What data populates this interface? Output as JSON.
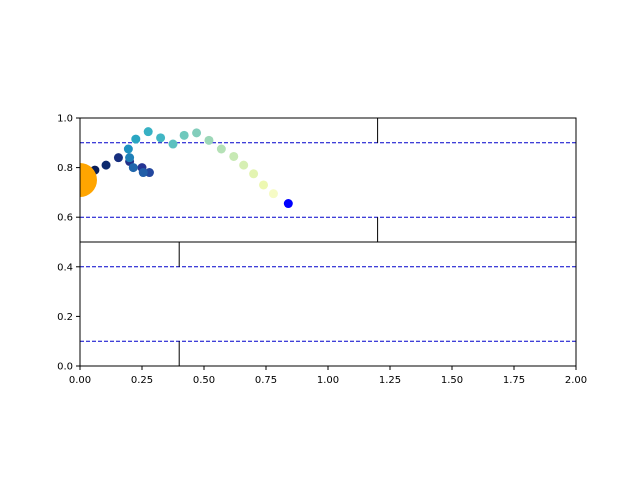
{
  "chart_data": {
    "type": "scatter",
    "xlim": [
      0,
      2
    ],
    "ylim": [
      0,
      1
    ],
    "x_ticks": [
      "0.00",
      "0.25",
      "0.50",
      "0.75",
      "1.00",
      "1.25",
      "1.50",
      "1.75",
      "2.00"
    ],
    "y_ticks": [
      "0.0",
      "0.2",
      "0.4",
      "0.6",
      "0.8",
      "1.0"
    ],
    "grid": false,
    "colors": {
      "dashed_lines": "#0000cc",
      "large_marker": "#ffa500",
      "final_point": "#0000ff",
      "frame": "#000000"
    },
    "partition_lines": {
      "horizontal": [
        {
          "y": 0.5,
          "x_from": 0,
          "x_to": 2
        }
      ],
      "vertical": [
        {
          "x": 1.2,
          "y_from": 0.9,
          "y_to": 1.0
        },
        {
          "x": 1.2,
          "y_from": 0.5,
          "y_to": 0.6
        },
        {
          "x": 0.4,
          "y_from": 0.4,
          "y_to": 0.5
        },
        {
          "x": 0.4,
          "y_from": 0.0,
          "y_to": 0.1
        }
      ]
    },
    "dashed_lines": [
      {
        "y": 0.9,
        "x_from": 0,
        "x_to": 2
      },
      {
        "y": 0.6,
        "x_from": 0,
        "x_to": 2
      },
      {
        "y": 0.4,
        "x_from": 0,
        "x_to": 2
      },
      {
        "y": 0.1,
        "x_from": 0,
        "x_to": 2
      }
    ],
    "large_marker": {
      "x": 0.0,
      "y": 0.75
    },
    "points": [
      {
        "x": 0.06,
        "y": 0.79,
        "color": "#081d58"
      },
      {
        "x": 0.105,
        "y": 0.81,
        "color": "#0c2a6e"
      },
      {
        "x": 0.155,
        "y": 0.84,
        "color": "#172f7f"
      },
      {
        "x": 0.2,
        "y": 0.825,
        "color": "#22328a"
      },
      {
        "x": 0.25,
        "y": 0.8,
        "color": "#253494"
      },
      {
        "x": 0.28,
        "y": 0.78,
        "color": "#23479e"
      },
      {
        "x": 0.255,
        "y": 0.78,
        "color": "#225ea8"
      },
      {
        "x": 0.215,
        "y": 0.8,
        "color": "#2166ac"
      },
      {
        "x": 0.2,
        "y": 0.84,
        "color": "#1f80b8"
      },
      {
        "x": 0.195,
        "y": 0.875,
        "color": "#1d91c0"
      },
      {
        "x": 0.225,
        "y": 0.915,
        "color": "#2aa6c2"
      },
      {
        "x": 0.275,
        "y": 0.945,
        "color": "#37b1c4"
      },
      {
        "x": 0.325,
        "y": 0.92,
        "color": "#41b6c4"
      },
      {
        "x": 0.375,
        "y": 0.895,
        "color": "#5cc0c0"
      },
      {
        "x": 0.42,
        "y": 0.93,
        "color": "#6fc9bd"
      },
      {
        "x": 0.47,
        "y": 0.94,
        "color": "#82cdbb"
      },
      {
        "x": 0.52,
        "y": 0.91,
        "color": "#9dd7b8"
      },
      {
        "x": 0.57,
        "y": 0.875,
        "color": "#b5e1b6"
      },
      {
        "x": 0.62,
        "y": 0.845,
        "color": "#c7e9b4"
      },
      {
        "x": 0.66,
        "y": 0.81,
        "color": "#d6efb3"
      },
      {
        "x": 0.7,
        "y": 0.775,
        "color": "#e3f4b1"
      },
      {
        "x": 0.74,
        "y": 0.73,
        "color": "#edf8b1"
      },
      {
        "x": 0.78,
        "y": 0.695,
        "color": "#f6fbc5"
      },
      {
        "x": 0.84,
        "y": 0.655,
        "color": "#0000ff"
      }
    ]
  }
}
